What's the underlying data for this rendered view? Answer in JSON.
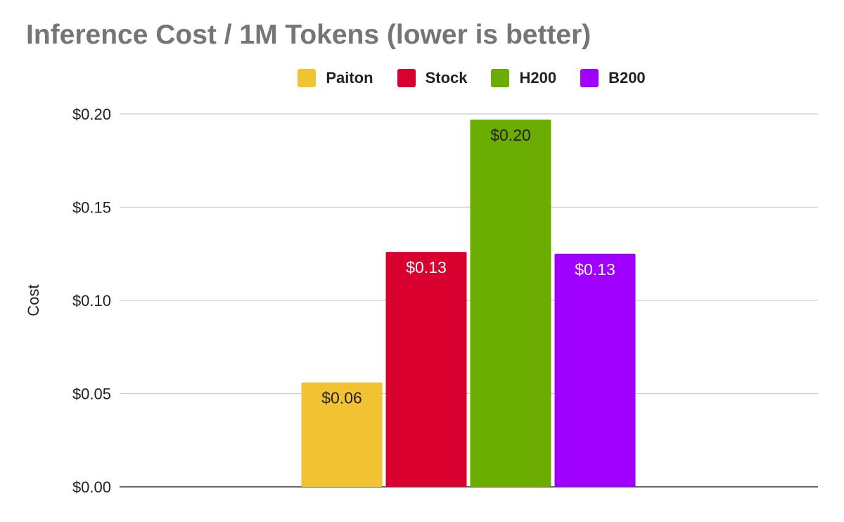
{
  "chart_data": {
    "type": "bar",
    "title": "Inference Cost / 1M Tokens (lower is better)",
    "xlabel": "",
    "ylabel": "Cost",
    "ylim": [
      0,
      0.2
    ],
    "yticks": [
      "$0.00",
      "$0.05",
      "$0.10",
      "$0.15",
      "$0.20"
    ],
    "ytick_values": [
      0,
      0.05,
      0.1,
      0.15,
      0.2
    ],
    "grid": true,
    "legend_position": "top",
    "categories": [
      ""
    ],
    "series": [
      {
        "name": "Paiton",
        "color": "#F1C232",
        "values": [
          0.056
        ],
        "label": "$0.06",
        "label_color": "#222222"
      },
      {
        "name": "Stock",
        "color": "#D9002F",
        "values": [
          0.126
        ],
        "label": "$0.13",
        "label_color": "#ffffff"
      },
      {
        "name": "H200",
        "color": "#6AAC00",
        "values": [
          0.197
        ],
        "label": "$0.20",
        "label_color": "#222222"
      },
      {
        "name": "B200",
        "color": "#A000FF",
        "values": [
          0.125
        ],
        "label": "$0.13",
        "label_color": "#ffffff"
      }
    ]
  }
}
